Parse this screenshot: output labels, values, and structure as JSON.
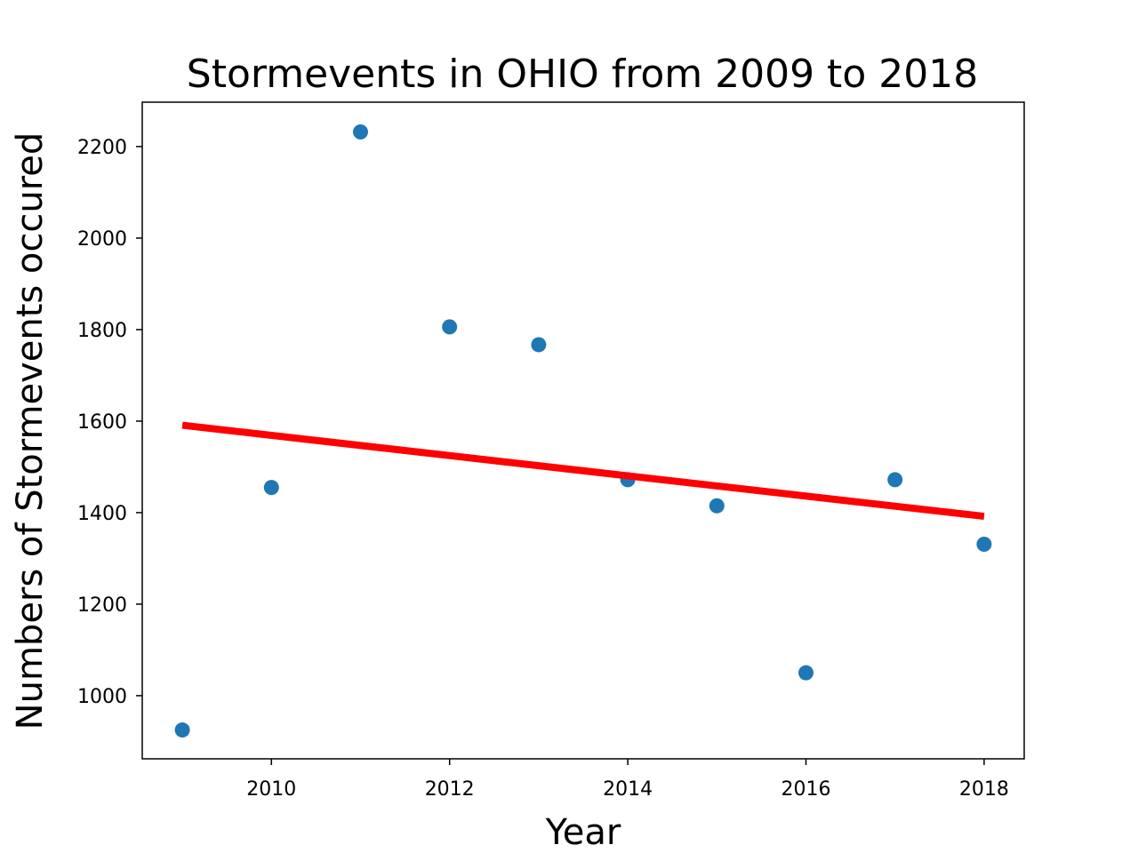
{
  "chart_data": {
    "type": "scatter",
    "title": "Stormevents in OHIO from 2009 to 2018",
    "xlabel": "Year",
    "ylabel": "Numbers of Stormevents occured",
    "xlim": [
      2008.55,
      2018.45
    ],
    "ylim": [
      862,
      2297
    ],
    "xticks": [
      2010,
      2012,
      2014,
      2016,
      2018
    ],
    "yticks": [
      1000,
      1200,
      1400,
      1600,
      1800,
      2000,
      2200
    ],
    "grid": false,
    "series": [
      {
        "type": "scatter",
        "color": "#1f77b4",
        "x": [
          2009,
          2010,
          2011,
          2012,
          2013,
          2014,
          2015,
          2016,
          2017,
          2018
        ],
        "y": [
          925,
          1455,
          2232,
          1806,
          1767,
          1472,
          1415,
          1050,
          1472,
          1331
        ]
      },
      {
        "type": "line",
        "role": "trend line",
        "color": "#ff0000",
        "x": [
          2009,
          2018
        ],
        "y": [
          1591,
          1392
        ]
      }
    ]
  }
}
